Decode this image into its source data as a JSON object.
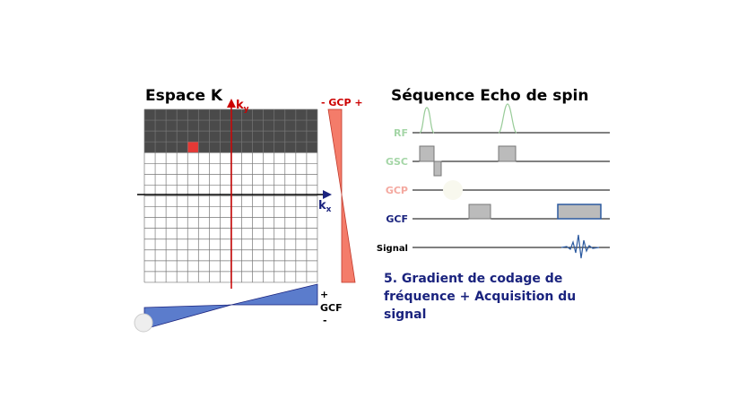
{
  "left": {
    "title": "Espace K",
    "ky": "k",
    "ky_sub": "y",
    "kx": "k",
    "kx_sub": "x",
    "gcp_label": "- GCP +",
    "gcf_plus": "+",
    "gcf_label": "GCF",
    "gcf_minus": "-"
  },
  "right": {
    "title": "Séquence Echo de spin",
    "rows": [
      "RF",
      "GSC",
      "GCP",
      "GCF",
      "Signal"
    ]
  },
  "caption": [
    "5. Gradient de codage de",
    "fréquence + Acquisition du",
    "signal"
  ]
}
